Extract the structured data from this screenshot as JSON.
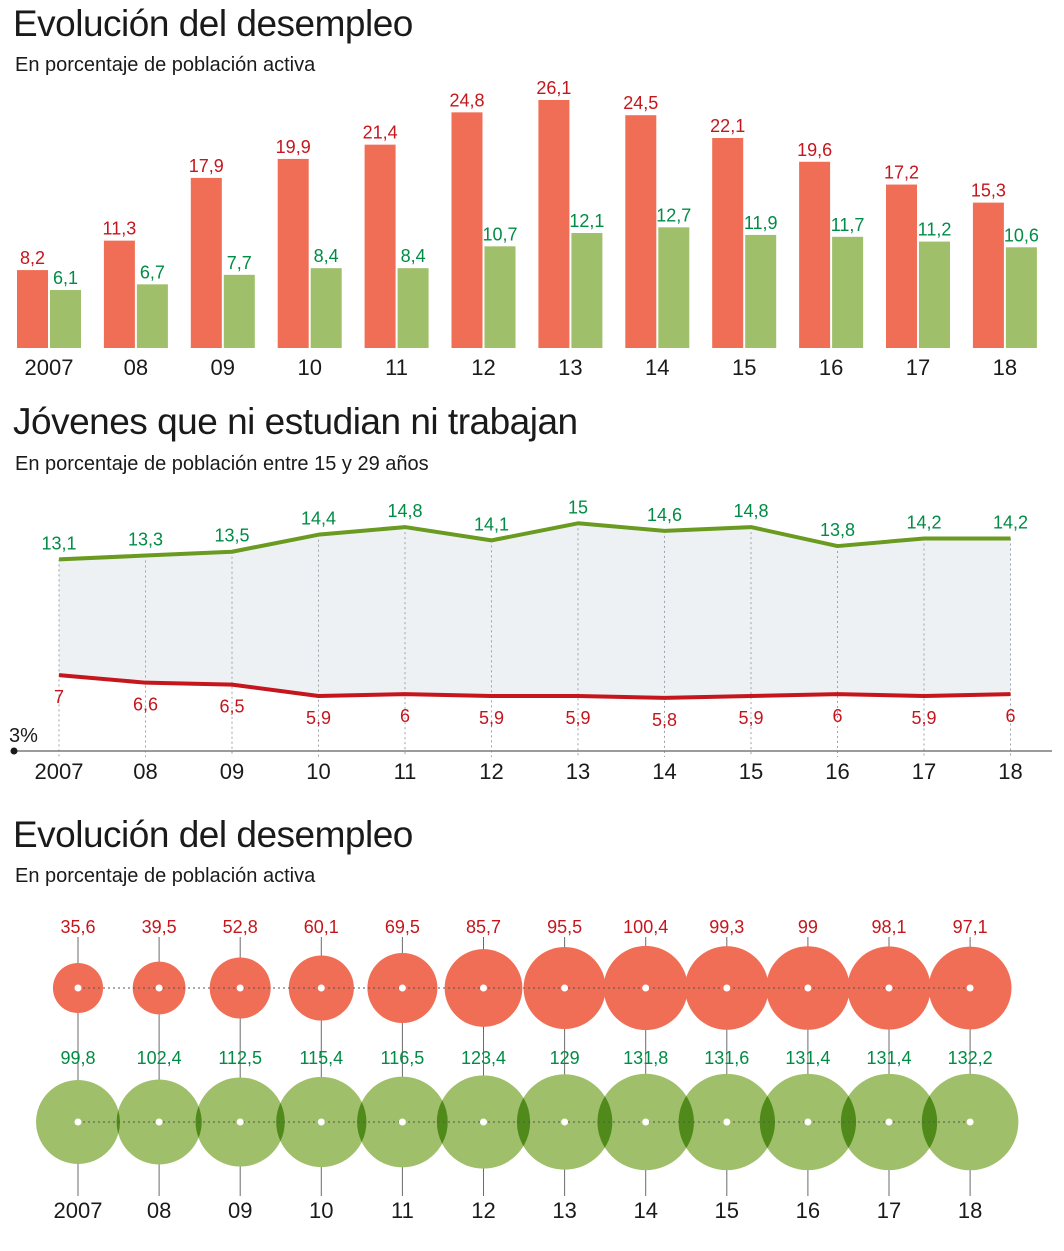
{
  "colors": {
    "red_bar": "#f06e55",
    "red_text": "#c4161c",
    "green_bar": "#9fbf6a",
    "green_text": "#008c45",
    "green_line": "#6a9a1f",
    "red_line": "#c4161c",
    "band_fill": "#edf1f4",
    "bubble_overlap": "#4f8a1a"
  },
  "chart_data": [
    {
      "type": "bar",
      "title": "Evolución del desempleo",
      "subtitle": "En porcentaje de población activa",
      "categories": [
        "2007",
        "08",
        "09",
        "10",
        "11",
        "12",
        "13",
        "14",
        "15",
        "16",
        "17",
        "18"
      ],
      "ylim": [
        0,
        26.1
      ],
      "grid": false,
      "series": [
        {
          "values": [
            8.2,
            11.3,
            17.9,
            19.9,
            21.4,
            24.8,
            26.1,
            24.5,
            22.1,
            19.6,
            17.2,
            15.3
          ],
          "labels": [
            "8,2",
            "11,3",
            "17,9",
            "19,9",
            "21,4",
            "24,8",
            "26,1",
            "24,5",
            "22,1",
            "19,6",
            "17,2",
            "15,3"
          ]
        },
        {
          "values": [
            6.1,
            6.7,
            7.7,
            8.4,
            8.4,
            10.7,
            12.1,
            12.7,
            11.9,
            11.7,
            11.2,
            10.6
          ],
          "labels": [
            "6,1",
            "6,7",
            "7,7",
            "8,4",
            "8,4",
            "10,7",
            "12,1",
            "12,7",
            "11,9",
            "11,7",
            "11,2",
            "10,6"
          ]
        }
      ]
    },
    {
      "type": "line",
      "title": "Jóvenes que ni estudian ni trabajan",
      "subtitle": "En porcentaje de población entre 15 y 29 años",
      "categories": [
        "2007",
        "08",
        "09",
        "10",
        "11",
        "12",
        "13",
        "14",
        "15",
        "16",
        "17",
        "18"
      ],
      "y_axis_label": "3%",
      "ylim": [
        3,
        15.7
      ],
      "grid": true,
      "series": [
        {
          "values": [
            13.1,
            13.3,
            13.5,
            14.4,
            14.8,
            14.1,
            15,
            14.6,
            14.8,
            13.8,
            14.2,
            14.2
          ],
          "labels": [
            "13,1",
            "13,3",
            "13,5",
            "14,4",
            "14,8",
            "14,1",
            "15",
            "14,6",
            "14,8",
            "13,8",
            "14,2",
            "14,2"
          ]
        },
        {
          "values": [
            7,
            6.6,
            6.5,
            5.9,
            6,
            5.9,
            5.9,
            5.8,
            5.9,
            6,
            5.9,
            6
          ],
          "labels": [
            "7",
            "6,6",
            "6,5",
            "5,9",
            "6",
            "5,9",
            "5,9",
            "5,8",
            "5,9",
            "6",
            "5,9",
            "6"
          ]
        }
      ]
    },
    {
      "type": "scatter",
      "title": "Evolución del desempleo",
      "subtitle": "En porcentaje de población activa",
      "categories": [
        "2007",
        "08",
        "09",
        "10",
        "11",
        "12",
        "13",
        "14",
        "15",
        "16",
        "17",
        "18"
      ],
      "grid": true,
      "series": [
        {
          "values": [
            35.6,
            39.5,
            52.8,
            60.1,
            69.5,
            85.7,
            95.5,
            100.4,
            99.3,
            99,
            98.1,
            97.1
          ],
          "labels": [
            "35,6",
            "39,5",
            "52,8",
            "60,1",
            "69,5",
            "85,7",
            "95,5",
            "100,4",
            "99,3",
            "99",
            "98,1",
            "97,1"
          ]
        },
        {
          "values": [
            99.8,
            102.4,
            112.5,
            115.4,
            116.5,
            123.4,
            129,
            131.8,
            131.6,
            131.4,
            131.4,
            132.2
          ],
          "labels": [
            "99,8",
            "102,4",
            "112,5",
            "115,4",
            "116,5",
            "123,4",
            "129",
            "131,8",
            "131,6",
            "131,4",
            "131,4",
            "132,2"
          ]
        }
      ]
    }
  ]
}
